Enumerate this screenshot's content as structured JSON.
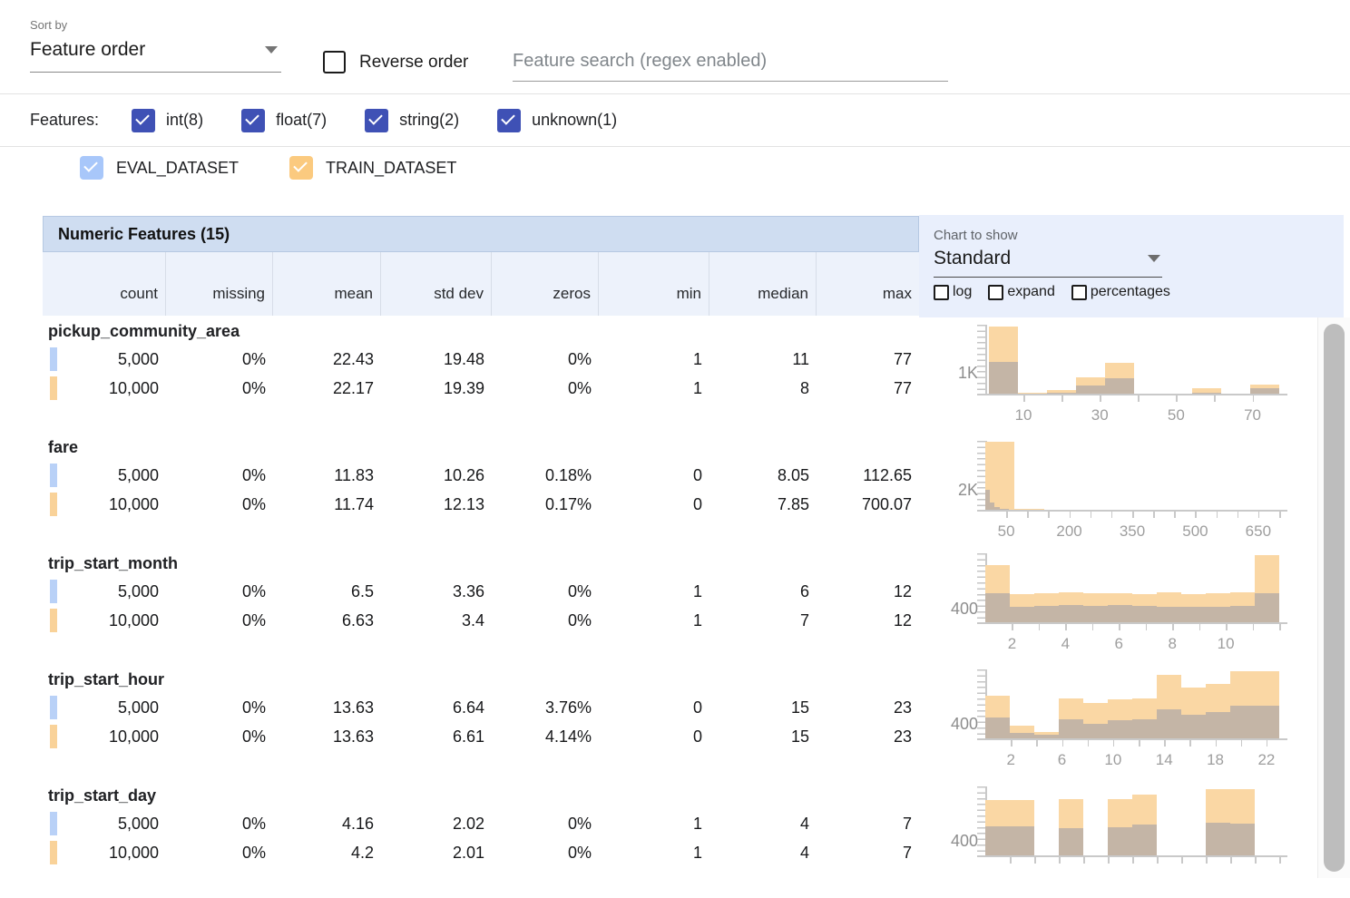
{
  "toolbar": {
    "sort_by_label": "Sort by",
    "sort_value": "Feature order",
    "reverse_label": "Reverse order",
    "search_placeholder": "Feature search (regex enabled)"
  },
  "filters": {
    "label": "Features:",
    "checkbox_color": "#3f51b5",
    "types": [
      {
        "label": "int(8)",
        "checked": true
      },
      {
        "label": "float(7)",
        "checked": true
      },
      {
        "label": "string(2)",
        "checked": true
      },
      {
        "label": "unknown(1)",
        "checked": true
      }
    ]
  },
  "datasets": [
    {
      "name": "EVAL_DATASET",
      "color": "#a8c7fa",
      "checked": true
    },
    {
      "name": "TRAIN_DATASET",
      "color": "#fbca7f",
      "checked": true
    }
  ],
  "table": {
    "title": "Numeric Features (15)",
    "columns": [
      "count",
      "missing",
      "mean",
      "std dev",
      "zeros",
      "min",
      "median",
      "max"
    ],
    "features": [
      {
        "name": "pickup_community_area",
        "rows": [
          {
            "dataset": "EVAL_DATASET",
            "swatch": "#b9d1f7",
            "values": [
              "5,000",
              "0%",
              "22.43",
              "19.48",
              "0%",
              "1",
              "11",
              "77"
            ]
          },
          {
            "dataset": "TRAIN_DATASET",
            "swatch": "#f9d299",
            "values": [
              "10,000",
              "0%",
              "22.17",
              "19.39",
              "0%",
              "1",
              "8",
              "77"
            ]
          }
        ]
      },
      {
        "name": "fare",
        "rows": [
          {
            "dataset": "EVAL_DATASET",
            "swatch": "#b9d1f7",
            "values": [
              "5,000",
              "0%",
              "11.83",
              "10.26",
              "0.18%",
              "0",
              "8.05",
              "112.65"
            ]
          },
          {
            "dataset": "TRAIN_DATASET",
            "swatch": "#f9d299",
            "values": [
              "10,000",
              "0%",
              "11.74",
              "12.13",
              "0.17%",
              "0",
              "7.85",
              "700.07"
            ]
          }
        ]
      },
      {
        "name": "trip_start_month",
        "rows": [
          {
            "dataset": "EVAL_DATASET",
            "swatch": "#b9d1f7",
            "values": [
              "5,000",
              "0%",
              "6.5",
              "3.36",
              "0%",
              "1",
              "6",
              "12"
            ]
          },
          {
            "dataset": "TRAIN_DATASET",
            "swatch": "#f9d299",
            "values": [
              "10,000",
              "0%",
              "6.63",
              "3.4",
              "0%",
              "1",
              "7",
              "12"
            ]
          }
        ]
      },
      {
        "name": "trip_start_hour",
        "rows": [
          {
            "dataset": "EVAL_DATASET",
            "swatch": "#b9d1f7",
            "values": [
              "5,000",
              "0%",
              "13.63",
              "6.64",
              "3.76%",
              "0",
              "15",
              "23"
            ]
          },
          {
            "dataset": "TRAIN_DATASET",
            "swatch": "#f9d299",
            "values": [
              "10,000",
              "0%",
              "13.63",
              "6.61",
              "4.14%",
              "0",
              "15",
              "23"
            ]
          }
        ]
      },
      {
        "name": "trip_start_day",
        "rows": [
          {
            "dataset": "EVAL_DATASET",
            "swatch": "#b9d1f7",
            "values": [
              "5,000",
              "0%",
              "4.16",
              "2.02",
              "0%",
              "1",
              "4",
              "7"
            ]
          },
          {
            "dataset": "TRAIN_DATASET",
            "swatch": "#f9d299",
            "values": [
              "10,000",
              "0%",
              "4.2",
              "2.01",
              "0%",
              "1",
              "4",
              "7"
            ]
          }
        ]
      }
    ]
  },
  "chart_panel": {
    "label": "Chart to show",
    "selected": "Standard",
    "options": [
      {
        "label": "log",
        "checked": false
      },
      {
        "label": "expand",
        "checked": false
      },
      {
        "label": "percentages",
        "checked": false
      }
    ]
  },
  "chart_data": [
    {
      "type": "bar",
      "feature": "pickup_community_area",
      "xmin": 0,
      "xmax": 77,
      "ymax": 3300,
      "ylabel": {
        "text": "1K",
        "value": 1000
      },
      "xticks": [
        10,
        30,
        50,
        70
      ],
      "minor_tick_step": 10,
      "minor_tick_start": 10,
      "series": [
        {
          "name": "TRAIN_DATASET",
          "color": "#fad7a4",
          "range": [
            1,
            77
          ],
          "values": [
            3200,
            60,
            160,
            760,
            1480,
            20,
            20,
            240,
            20,
            430
          ]
        },
        {
          "name": "EVAL_DATASET",
          "color": "rgba(183,172,166,0.8)",
          "range": [
            1,
            77
          ],
          "values": [
            1500,
            20,
            60,
            380,
            720,
            10,
            10,
            60,
            10,
            240
          ]
        }
      ]
    },
    {
      "type": "bar",
      "feature": "fare",
      "xmin": 0,
      "xmax": 700,
      "ymax": 7000,
      "ylabel": {
        "text": "2K",
        "value": 2000
      },
      "xticks": [
        50,
        200,
        350,
        500,
        650
      ],
      "minor_tick_step": 50,
      "minor_tick_start": 50,
      "series": [
        {
          "name": "TRAIN_DATASET",
          "color": "#fad7a4",
          "range": [
            0,
            700.07
          ],
          "values": [
            6900,
            120,
            40,
            15,
            8,
            5,
            3,
            2,
            1,
            1
          ]
        },
        {
          "name": "EVAL_DATASET",
          "color": "rgba(183,172,166,0.8)",
          "range": [
            0,
            112.65
          ],
          "values": [
            2050,
            780,
            300,
            120,
            60,
            30,
            15,
            8,
            4,
            2
          ]
        }
      ]
    },
    {
      "type": "bar",
      "feature": "trip_start_month",
      "xmin": 1,
      "xmax": 12,
      "ymax": 2050,
      "ylabel": {
        "text": "400",
        "value": 400
      },
      "xticks": [
        2,
        4,
        6,
        8,
        10
      ],
      "minor_tick_step": 1,
      "minor_tick_start": 2,
      "series": [
        {
          "name": "TRAIN_DATASET",
          "color": "#fad7a4",
          "range": [
            1,
            12
          ],
          "values": [
            1700,
            830,
            870,
            880,
            870,
            850,
            840,
            880,
            840,
            860,
            900,
            2000
          ]
        },
        {
          "name": "EVAL_DATASET",
          "color": "rgba(183,172,166,0.8)",
          "range": [
            1,
            12
          ],
          "values": [
            870,
            470,
            480,
            500,
            490,
            500,
            480,
            470,
            460,
            470,
            490,
            870
          ]
        }
      ]
    },
    {
      "type": "bar",
      "feature": "trip_start_hour",
      "xmin": 0,
      "xmax": 23,
      "ymax": 1950,
      "ylabel": {
        "text": "400",
        "value": 400
      },
      "xticks": [
        2,
        6,
        10,
        14,
        18,
        22
      ],
      "minor_tick_step": 2,
      "minor_tick_start": 2,
      "series": [
        {
          "name": "TRAIN_DATASET",
          "color": "#fad7a4",
          "range": [
            0,
            23
          ],
          "values": [
            1200,
            360,
            180,
            1140,
            990,
            1110,
            1140,
            1800,
            1440,
            1530,
            1890,
            1890
          ]
        },
        {
          "name": "EVAL_DATASET",
          "color": "rgba(183,172,166,0.8)",
          "range": [
            0,
            23
          ],
          "values": [
            600,
            150,
            90,
            540,
            420,
            510,
            540,
            810,
            660,
            750,
            930,
            930
          ]
        }
      ]
    },
    {
      "type": "bar",
      "feature": "trip_start_day",
      "xmin": 1,
      "xmax": 7,
      "ymax": 1900,
      "ylabel": {
        "text": "400",
        "value": 400
      },
      "xticks": [],
      "minor_tick_step": 0.5,
      "minor_tick_start": 1.5,
      "series": [
        {
          "name": "TRAIN_DATASET",
          "color": "#fad7a4",
          "range": [
            1,
            7
          ],
          "values": [
            1530,
            1530,
            0,
            1560,
            0,
            1560,
            1680,
            0,
            0,
            1830,
            1830,
            0
          ]
        },
        {
          "name": "EVAL_DATASET",
          "color": "rgba(183,172,166,0.8)",
          "range": [
            1,
            7
          ],
          "values": [
            810,
            810,
            0,
            750,
            0,
            780,
            840,
            0,
            0,
            900,
            870,
            0
          ]
        }
      ]
    }
  ]
}
